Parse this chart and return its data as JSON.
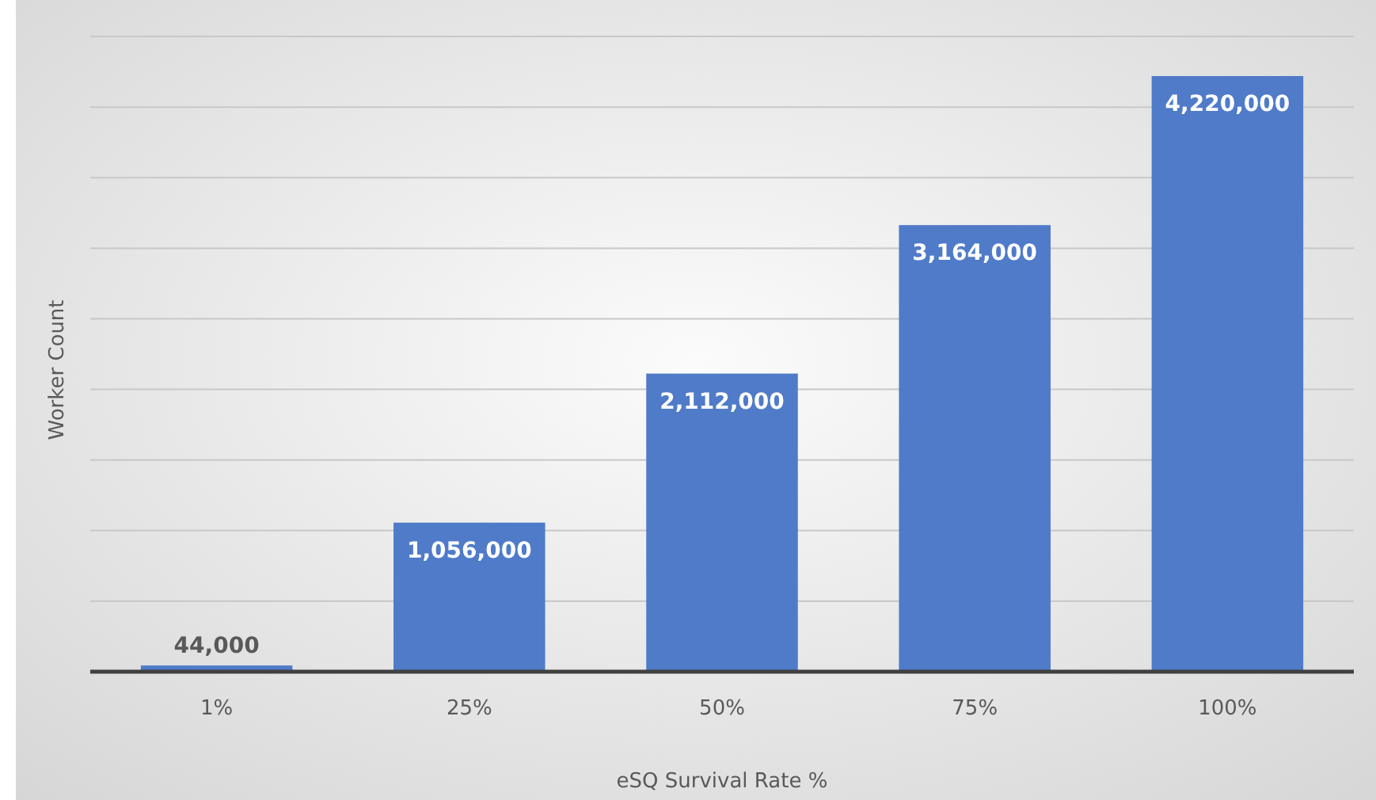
{
  "chart_data": {
    "type": "bar",
    "xlabel": "eSQ Survival Rate %",
    "ylabel": "Worker Count",
    "categories": [
      "1%",
      "25%",
      "50%",
      "75%",
      "100%"
    ],
    "values": [
      44000,
      1056000,
      2112000,
      3164000,
      4220000
    ],
    "color": "#4f7bc9",
    "value_labels": [
      "44,000",
      "1,056,000",
      "2,112,000",
      "3,164,000",
      "4,220,000"
    ],
    "grid": "y",
    "tick_labels": "x"
  }
}
